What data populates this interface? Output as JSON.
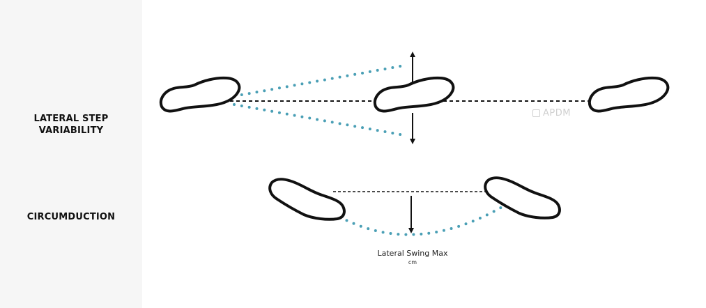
{
  "rows": {
    "lateral_step_variability": {
      "line1": "LATERAL STEP",
      "line2": "VARIABILITY"
    },
    "circumduction": {
      "label": "CIRCUMDUCTION"
    }
  },
  "caption": {
    "main": "Lateral Swing Max",
    "unit": "cm"
  },
  "watermark": {
    "text": "APDM"
  },
  "colors": {
    "dotted_path": "#4a9fb5",
    "dashed_line": "#111111",
    "foot_outline": "#111111",
    "left_panel": "#f6f6f6",
    "watermark": "#cfcfcf"
  },
  "icons": [
    "footprint-icon",
    "double-arrow-icon",
    "down-arrow-icon",
    "apdm-logo-icon"
  ]
}
